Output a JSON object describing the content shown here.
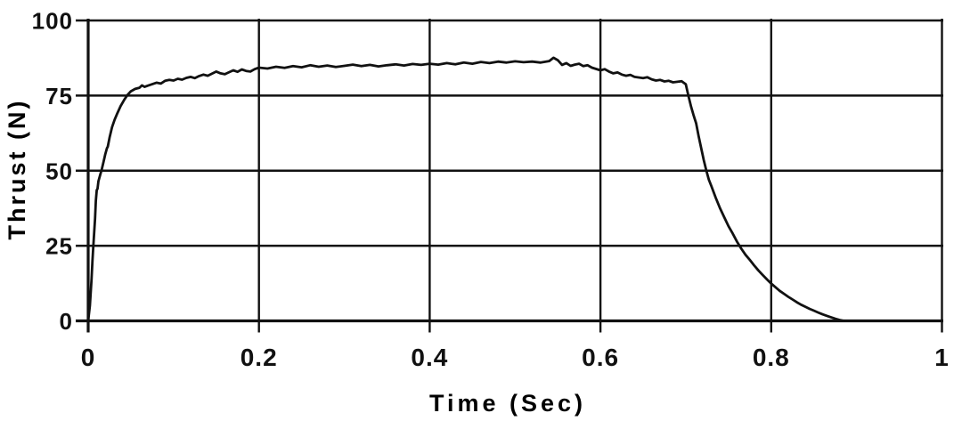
{
  "figure": {
    "background": "#ffffff",
    "ink_color": "#111111"
  },
  "chart_data": {
    "type": "line",
    "title": "",
    "xlabel": "Time (Sec)",
    "ylabel": "Thrust (N)",
    "xlim": [
      0,
      1
    ],
    "ylim": [
      0,
      100
    ],
    "x_ticks": [
      0,
      0.2,
      0.4,
      0.6,
      0.8,
      1
    ],
    "x_tick_labels": [
      "0",
      "0.2",
      "0.4",
      "0.6",
      "0.8",
      "1"
    ],
    "y_ticks": [
      0,
      25,
      50,
      75,
      100
    ],
    "y_tick_labels": [
      "0",
      "25",
      "50",
      "75",
      "100"
    ],
    "grid": true,
    "legend": "none",
    "series": [
      {
        "name": "thrust",
        "points": [
          [
            0,
            0
          ],
          [
            0.002,
            5
          ],
          [
            0.004,
            14
          ],
          [
            0.005,
            20
          ],
          [
            0.006,
            25
          ],
          [
            0.008,
            34
          ],
          [
            0.009,
            40
          ],
          [
            0.01,
            43.5
          ],
          [
            0.011,
            44
          ],
          [
            0.012,
            46.5
          ],
          [
            0.014,
            48.5
          ],
          [
            0.016,
            50.5
          ],
          [
            0.018,
            53
          ],
          [
            0.02,
            55.5
          ],
          [
            0.022,
            57.5
          ],
          [
            0.023,
            58
          ],
          [
            0.025,
            61
          ],
          [
            0.028,
            64.5
          ],
          [
            0.031,
            67
          ],
          [
            0.034,
            69
          ],
          [
            0.038,
            71.5
          ],
          [
            0.042,
            73.5
          ],
          [
            0.046,
            75.2
          ],
          [
            0.05,
            76.4
          ],
          [
            0.055,
            77.2
          ],
          [
            0.06,
            77.6
          ],
          [
            0.063,
            78.4
          ],
          [
            0.066,
            77.9
          ],
          [
            0.07,
            78.3
          ],
          [
            0.075,
            78.8
          ],
          [
            0.08,
            79.3
          ],
          [
            0.085,
            79
          ],
          [
            0.09,
            79.9
          ],
          [
            0.095,
            80.2
          ],
          [
            0.1,
            80
          ],
          [
            0.105,
            80.6
          ],
          [
            0.11,
            80.3
          ],
          [
            0.115,
            80.9
          ],
          [
            0.12,
            81.2
          ],
          [
            0.125,
            80.8
          ],
          [
            0.13,
            81.5
          ],
          [
            0.135,
            82
          ],
          [
            0.14,
            81.6
          ],
          [
            0.145,
            82.3
          ],
          [
            0.15,
            83
          ],
          [
            0.155,
            82.4
          ],
          [
            0.16,
            82.1
          ],
          [
            0.165,
            82.8
          ],
          [
            0.17,
            83.4
          ],
          [
            0.175,
            82.9
          ],
          [
            0.18,
            83.7
          ],
          [
            0.185,
            83.2
          ],
          [
            0.19,
            83
          ],
          [
            0.195,
            83.8
          ],
          [
            0.2,
            84.3
          ],
          [
            0.21,
            84
          ],
          [
            0.22,
            84.6
          ],
          [
            0.23,
            84.2
          ],
          [
            0.24,
            84.8
          ],
          [
            0.25,
            84.4
          ],
          [
            0.26,
            85.1
          ],
          [
            0.27,
            84.6
          ],
          [
            0.28,
            85
          ],
          [
            0.29,
            84.5
          ],
          [
            0.3,
            84.9
          ],
          [
            0.31,
            85.3
          ],
          [
            0.32,
            84.8
          ],
          [
            0.33,
            85.2
          ],
          [
            0.34,
            84.7
          ],
          [
            0.35,
            85.1
          ],
          [
            0.36,
            85.4
          ],
          [
            0.37,
            85
          ],
          [
            0.38,
            85.5
          ],
          [
            0.39,
            85.2
          ],
          [
            0.4,
            85.6
          ],
          [
            0.41,
            85.3
          ],
          [
            0.42,
            85.8
          ],
          [
            0.43,
            85.4
          ],
          [
            0.44,
            86
          ],
          [
            0.45,
            85.6
          ],
          [
            0.46,
            86.2
          ],
          [
            0.47,
            85.8
          ],
          [
            0.48,
            86.3
          ],
          [
            0.49,
            86
          ],
          [
            0.5,
            86.4
          ],
          [
            0.51,
            86.1
          ],
          [
            0.52,
            86.3
          ],
          [
            0.53,
            86
          ],
          [
            0.54,
            86.5
          ],
          [
            0.545,
            87.6
          ],
          [
            0.55,
            86.8
          ],
          [
            0.555,
            85.2
          ],
          [
            0.56,
            85.8
          ],
          [
            0.565,
            84.9
          ],
          [
            0.57,
            85.3
          ],
          [
            0.575,
            85.6
          ],
          [
            0.58,
            84.8
          ],
          [
            0.585,
            85.1
          ],
          [
            0.59,
            84.3
          ],
          [
            0.6,
            83.4
          ],
          [
            0.605,
            83.8
          ],
          [
            0.61,
            83
          ],
          [
            0.615,
            82.4
          ],
          [
            0.62,
            82.7
          ],
          [
            0.625,
            82
          ],
          [
            0.63,
            81.6
          ],
          [
            0.635,
            81.9
          ],
          [
            0.64,
            81.2
          ],
          [
            0.65,
            80.8
          ],
          [
            0.655,
            81.1
          ],
          [
            0.66,
            80.4
          ],
          [
            0.665,
            80
          ],
          [
            0.67,
            80.2
          ],
          [
            0.675,
            79.7
          ],
          [
            0.68,
            79.9
          ],
          [
            0.685,
            79.4
          ],
          [
            0.69,
            79.6
          ],
          [
            0.695,
            79.8
          ],
          [
            0.7,
            78.8
          ],
          [
            0.703,
            75
          ],
          [
            0.706,
            71.5
          ],
          [
            0.709,
            68.5
          ],
          [
            0.712,
            65.8
          ],
          [
            0.715,
            61.5
          ],
          [
            0.718,
            57.5
          ],
          [
            0.721,
            53.5
          ],
          [
            0.724,
            50
          ],
          [
            0.727,
            47
          ],
          [
            0.73,
            44.8
          ],
          [
            0.735,
            41
          ],
          [
            0.74,
            37.5
          ],
          [
            0.745,
            34.5
          ],
          [
            0.75,
            31.5
          ],
          [
            0.755,
            29
          ],
          [
            0.76,
            26.3
          ],
          [
            0.765,
            24
          ],
          [
            0.77,
            22
          ],
          [
            0.775,
            20.3
          ],
          [
            0.78,
            18.5
          ],
          [
            0.785,
            16.8
          ],
          [
            0.79,
            15.3
          ],
          [
            0.795,
            13.8
          ],
          [
            0.8,
            12.4
          ],
          [
            0.805,
            11.2
          ],
          [
            0.81,
            10
          ],
          [
            0.815,
            9
          ],
          [
            0.82,
            8
          ],
          [
            0.825,
            7.1
          ],
          [
            0.83,
            6.2
          ],
          [
            0.835,
            5.4
          ],
          [
            0.84,
            4.7
          ],
          [
            0.845,
            4
          ],
          [
            0.85,
            3.4
          ],
          [
            0.855,
            2.8
          ],
          [
            0.86,
            2.2
          ],
          [
            0.865,
            1.7
          ],
          [
            0.87,
            1.2
          ],
          [
            0.875,
            0.7
          ],
          [
            0.88,
            0.3
          ],
          [
            0.885,
            0
          ]
        ]
      }
    ]
  }
}
